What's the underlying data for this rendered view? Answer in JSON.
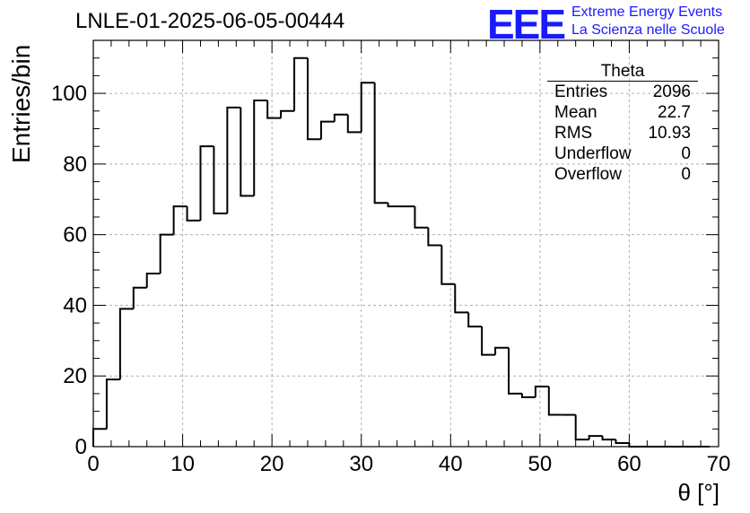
{
  "title": "LNLE-01-2025-06-05-00444",
  "logo": {
    "mark": "EEE",
    "line1": "Extreme Energy Events",
    "line2": "La Scienza nelle Scuole"
  },
  "stats": {
    "name": "Theta",
    "rows": [
      {
        "label": "Entries",
        "value": "2096"
      },
      {
        "label": "Mean",
        "value": "22.7"
      },
      {
        "label": "RMS",
        "value": "10.93"
      },
      {
        "label": "Underflow",
        "value": "0"
      },
      {
        "label": "Overflow",
        "value": "0"
      }
    ]
  },
  "chart_data": {
    "type": "bar",
    "style": "step-histogram",
    "title": "LNLE-01-2025-06-05-00444",
    "xlabel": "θ [°]",
    "ylabel": "Entries/bin",
    "xlim": [
      0,
      70
    ],
    "ylim": [
      0,
      115
    ],
    "grid": true,
    "bin_width": 1.5,
    "bin_start": 0,
    "xticks": [
      0,
      10,
      20,
      30,
      40,
      50,
      60,
      70
    ],
    "yticks": [
      0,
      20,
      40,
      60,
      80,
      100
    ],
    "values": [
      5,
      19,
      39,
      45,
      49,
      60,
      68,
      64,
      85,
      66,
      96,
      71,
      98,
      93,
      95,
      110,
      87,
      92,
      94,
      89,
      103,
      69,
      68,
      68,
      62,
      57,
      46,
      38,
      34,
      26,
      28,
      15,
      14,
      17,
      9,
      9,
      2,
      3,
      2,
      1,
      0,
      0,
      0,
      0,
      0,
      0
    ]
  }
}
